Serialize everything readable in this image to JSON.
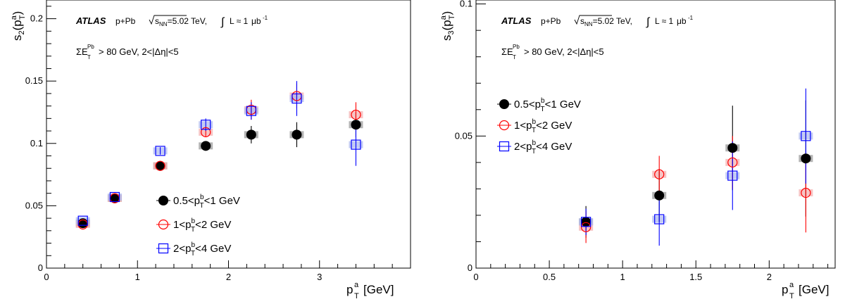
{
  "chart_data": [
    {
      "type": "scatter",
      "label_atlas": "ATLAS",
      "label_system": "p+Pb",
      "label_energy": "√s_NN=5.02 TeV,",
      "label_lumi": "∫ L ≈ 1μb⁻¹",
      "label_cut": "ΣE_T^Pb > 80 GeV, 2<|Δη|<5",
      "ylabel": "s_2(p_T^a)",
      "xlabel": "p_T^a [GeV]",
      "xlim": [
        0,
        4.0
      ],
      "ylim": [
        0,
        0.215
      ],
      "x_ticks": [
        "0",
        "1",
        "2",
        "3"
      ],
      "x_tick_values": [
        0,
        1,
        2,
        3
      ],
      "y_ticks": [
        "0",
        "0.05",
        "0.1",
        "0.15",
        "0.2"
      ],
      "y_tick_values": [
        0,
        0.05,
        0.1,
        0.15,
        0.2
      ],
      "legend_position": "bottom-center",
      "series": [
        {
          "name": "0.5<p_T^b<1 GeV",
          "marker": "filled-circle",
          "color": "#000000",
          "x": [
            0.4,
            0.75,
            1.25,
            1.75,
            2.25,
            2.75,
            3.4
          ],
          "y": [
            0.036,
            0.056,
            0.082,
            0.098,
            0.107,
            0.107,
            0.115
          ],
          "yerr": [
            0.0015,
            0.0015,
            0.002,
            0.003,
            0.007,
            0.01,
            0.01
          ]
        },
        {
          "name": "1<p_T^b<2 GeV",
          "marker": "open-circle",
          "color": "#ff0000",
          "x": [
            0.4,
            0.75,
            1.25,
            1.75,
            2.25,
            2.75,
            3.4
          ],
          "y": [
            0.035,
            0.056,
            0.082,
            0.109,
            0.127,
            0.138,
            0.123
          ],
          "yerr": [
            0.0015,
            0.0015,
            0.002,
            0.004,
            0.008,
            0.01,
            0.01
          ]
        },
        {
          "name": "2<p_T^b<4 GeV",
          "marker": "open-square",
          "color": "#0000ff",
          "x": [
            0.4,
            0.75,
            1.25,
            1.75,
            2.25,
            2.75,
            3.4
          ],
          "y": [
            0.038,
            0.057,
            0.094,
            0.115,
            0.126,
            0.136,
            0.099
          ],
          "yerr": [
            0.0015,
            0.0015,
            0.003,
            0.005,
            0.007,
            0.014,
            0.017
          ]
        }
      ]
    },
    {
      "type": "scatter",
      "label_atlas": "ATLAS",
      "label_system": "p+Pb",
      "label_energy": "√s_NN=5.02 TeV,",
      "label_lumi": "∫ L ≈ 1μb⁻¹",
      "label_cut": "ΣE_T^Pb > 80 GeV, 2<|Δη|<5",
      "ylabel": "s_3(p_T^a)",
      "xlabel": "p_T^a [GeV]",
      "xlim": [
        0,
        2.45
      ],
      "ylim": [
        0,
        0.1015
      ],
      "x_ticks": [
        "0",
        "0.5",
        "1",
        "1.5",
        "2"
      ],
      "x_tick_values": [
        0,
        0.5,
        1,
        1.5,
        2
      ],
      "y_ticks": [
        "0",
        "0.05",
        "0.1"
      ],
      "y_tick_values": [
        0,
        0.05,
        0.1
      ],
      "legend_position": "middle-left",
      "series": [
        {
          "name": "0.5<p_T^b<1 GeV",
          "marker": "filled-circle",
          "color": "#000000",
          "x": [
            0.75,
            1.25,
            1.75,
            2.25
          ],
          "y": [
            0.0175,
            0.0275,
            0.0455,
            0.0415
          ],
          "yerr": [
            0.006,
            0.01,
            0.016,
            0.022
          ]
        },
        {
          "name": "1<p_T^b<2 GeV",
          "marker": "open-circle",
          "color": "#ff0000",
          "x": [
            0.75,
            1.25,
            1.75,
            2.25
          ],
          "y": [
            0.0155,
            0.0355,
            0.04,
            0.0285
          ],
          "yerr": [
            0.006,
            0.007,
            0.01,
            0.015
          ]
        },
        {
          "name": "2<p_T^b<4 GeV",
          "marker": "open-square",
          "color": "#0000ff",
          "x": [
            0.75,
            1.25,
            1.75,
            2.25
          ],
          "y": [
            0.0175,
            0.0185,
            0.035,
            0.05
          ],
          "yerr": [
            0.005,
            0.01,
            0.013,
            0.018
          ]
        }
      ]
    }
  ]
}
